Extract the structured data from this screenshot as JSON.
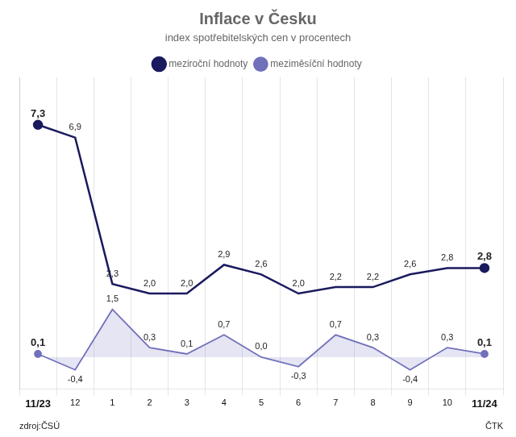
{
  "chart_data": {
    "type": "line",
    "title": "Inflace v Česku",
    "subtitle": "index spotřebitelských cen v procentech",
    "categories": [
      "11/23",
      "12",
      "1",
      "2",
      "3",
      "4",
      "5",
      "6",
      "7",
      "8",
      "9",
      "10",
      "11/24"
    ],
    "series": [
      {
        "name": "meziroční hodnoty",
        "color": "#1a1a5e",
        "values": [
          7.3,
          6.9,
          2.3,
          2.0,
          2.0,
          2.9,
          2.6,
          2.0,
          2.2,
          2.2,
          2.6,
          2.8,
          2.8
        ],
        "value_labels": [
          "7,3",
          "6,9",
          "2,3",
          "2,0",
          "2,0",
          "2,9",
          "2,6",
          "2,0",
          "2,2",
          "2,2",
          "2,6",
          "2,8",
          "2,8"
        ]
      },
      {
        "name": "meziměsíční hodnoty",
        "color": "#7070bb",
        "values": [
          0.1,
          -0.4,
          1.5,
          0.3,
          0.1,
          0.7,
          0.0,
          -0.3,
          0.7,
          0.3,
          -0.4,
          0.3,
          0.1
        ],
        "value_labels": [
          "0,1",
          "-0,4",
          "1,5",
          "0,3",
          "0,1",
          "0,7",
          "0,0",
          "-0,3",
          "0,7",
          "0,3",
          "-0,4",
          "0,3",
          "0,1"
        ]
      }
    ],
    "ylim": [
      -1.0,
      8.8
    ],
    "grid": true,
    "legend": "top",
    "data_labels": true,
    "tick_labels": "x",
    "annotations": [
      "zdroj:ČSÚ",
      "ČTK"
    ]
  }
}
